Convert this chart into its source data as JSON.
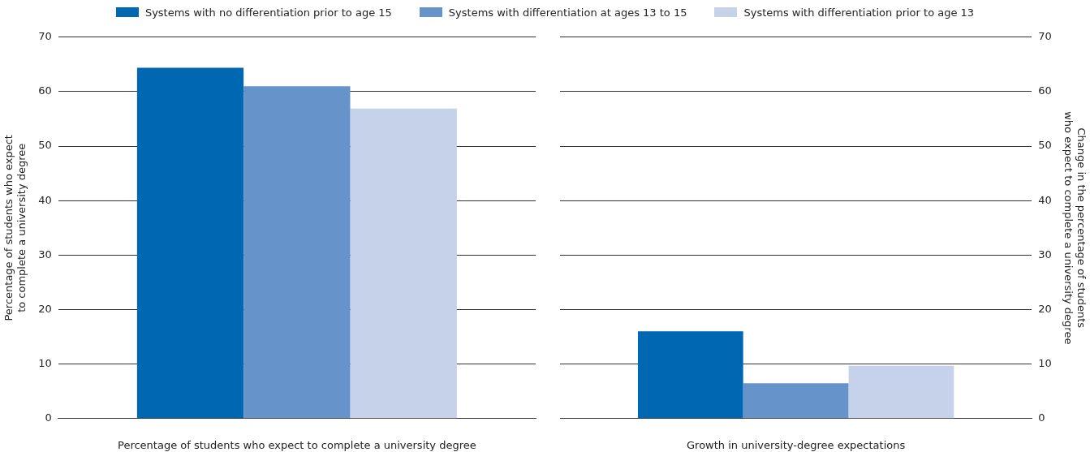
{
  "chart_data": [
    {
      "type": "bar",
      "categories": [
        null
      ],
      "xlabel": "Percentage of students who expect to complete a university degree",
      "ylabel": "Percentage of students who expect\nto complete a university degree",
      "ylim": [
        0,
        70
      ],
      "yticks": [
        0,
        10,
        20,
        30,
        40,
        50,
        60,
        70
      ],
      "grid": "y",
      "legend": "top",
      "series": [
        {
          "name": "Systems with no differentiation prior to age 15",
          "color": "#0067b2",
          "values": [
            64.4
          ]
        },
        {
          "name": "Systems with differentiation at ages 13 to 15",
          "color": "#6693ca",
          "values": [
            61.0
          ]
        },
        {
          "name": "Systems with differentiation prior to age 13",
          "color": "#c6d2ea",
          "values": [
            56.9
          ]
        }
      ]
    },
    {
      "type": "bar",
      "categories": [
        null
      ],
      "xlabel": "Growth in university-degree expectations",
      "ylabel": "Change in the percentage of students\nwho expect to complete a university degree",
      "ylim": [
        0,
        70
      ],
      "yticks": [
        0,
        10,
        20,
        30,
        40,
        50,
        60,
        70
      ],
      "grid": "y",
      "series": [
        {
          "color": "#0067b2",
          "values": [
            16.0
          ]
        },
        {
          "color": "#6693ca",
          "values": [
            6.5
          ]
        },
        {
          "color": "#c6d2ea",
          "values": [
            9.7
          ]
        }
      ]
    }
  ]
}
